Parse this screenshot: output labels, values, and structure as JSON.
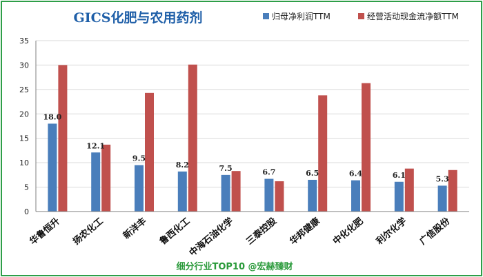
{
  "chart_data": {
    "type": "bar",
    "title": "GICS化肥与农用药剂",
    "footer": "细分行业TOP10 @宏赫臻财",
    "categories": [
      "华鲁恒升",
      "扬农化工",
      "新洋丰",
      "鲁西化工",
      "中海石油化学",
      "三泰控股",
      "华邦健康",
      "中化化肥",
      "利尔化学",
      "广信股份"
    ],
    "series": [
      {
        "name": "归母净利润TTM",
        "color": "#4a7ebb",
        "values": [
          18.0,
          12.1,
          9.5,
          8.2,
          7.5,
          6.7,
          6.5,
          6.4,
          6.1,
          5.3
        ],
        "labels": [
          "18.0",
          "12.1",
          "9.5",
          "8.2",
          "7.5",
          "6.7",
          "6.5",
          "6.4",
          "6.1",
          "5.3"
        ]
      },
      {
        "name": "经营活动现金流净额TTM",
        "color": "#c0504d",
        "values": [
          30.0,
          13.7,
          24.3,
          30.1,
          8.3,
          6.2,
          23.8,
          26.3,
          8.8,
          8.5
        ]
      }
    ],
    "ylim": [
      0,
      35
    ],
    "yticks": [
      0,
      5,
      10,
      15,
      20,
      25,
      30,
      35
    ],
    "grid": true,
    "legend_position": "top-right"
  }
}
